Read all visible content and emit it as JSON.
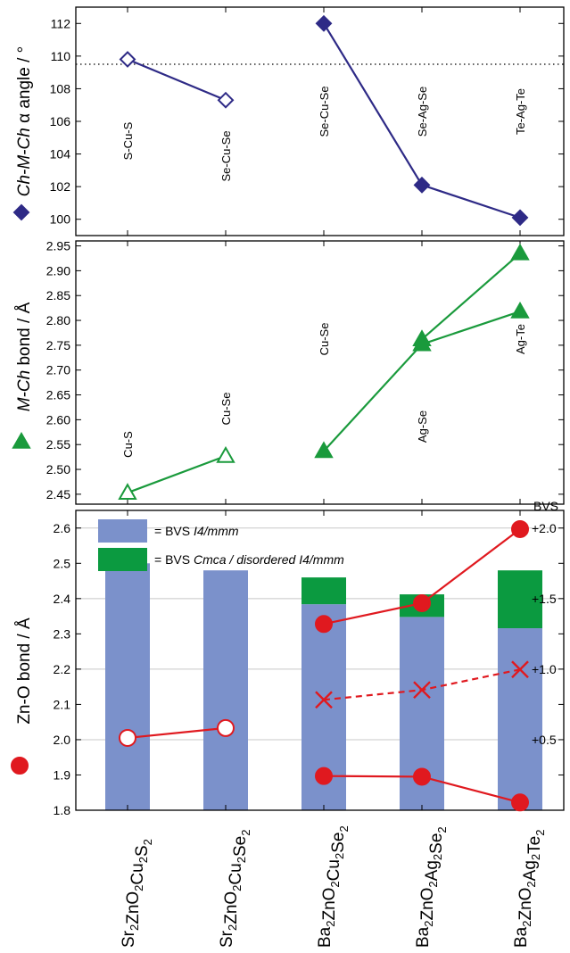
{
  "colors": {
    "purple": "#2e2a86",
    "green": "#1a9a3c",
    "red": "#e0191f",
    "bar_blue": "#7b91cb",
    "bar_green": "#0b9a40",
    "grid": "#c8c8c8"
  },
  "categories": [
    "Sr2ZnO2Cu2S2",
    "Sr2ZnO2Cu2Se2",
    "Ba2ZnO2Cu2Se2",
    "Ba2ZnO2Ag2Se2",
    "Ba2ZnO2Ag2Te2"
  ],
  "chart_data": [
    {
      "type": "line",
      "ylabel": {
        "italic1": "Ch-M-Ch",
        "greek": " α",
        "rest": " angle / °"
      },
      "ylim": [
        99,
        113
      ],
      "yticks": [
        "100",
        "102",
        "104",
        "106",
        "108",
        "110",
        "112"
      ],
      "reference_line": 109.5,
      "series": [
        {
          "x": [
            0,
            1
          ],
          "values": [
            109.8,
            107.3
          ],
          "marker": "diamond-open",
          "labels": [
            "S-Cu-S",
            "Se-Cu-Se"
          ]
        },
        {
          "x": [
            2,
            3,
            4
          ],
          "values": [
            112.0,
            102.1,
            100.1
          ],
          "marker": "diamond-filled",
          "labels": [
            "Se-Cu-Se",
            "Se-Ag-Se",
            "Te-Ag-Te"
          ]
        }
      ]
    },
    {
      "type": "line",
      "ylabel": {
        "italic1": "M-Ch",
        "rest": " bond  / Å"
      },
      "ylim": [
        2.43,
        2.96
      ],
      "yticks": [
        "2.45",
        "2.50",
        "2.55",
        "2.60",
        "2.65",
        "2.70",
        "2.75",
        "2.80",
        "2.85",
        "2.90",
        "2.95"
      ],
      "series": [
        {
          "x": [
            0,
            1
          ],
          "values": [
            2.453,
            2.527
          ],
          "marker": "triangle-open",
          "labels": [
            "Cu-S",
            "Cu-Se"
          ]
        },
        {
          "x": [
            2,
            3,
            4
          ],
          "values": [
            2.537,
            2.752,
            2.818
          ],
          "marker": "triangle-filled",
          "labels": [
            "Cu-Se",
            "Ag-Se",
            "Ag-Te"
          ]
        },
        {
          "x": [
            3,
            4
          ],
          "values": [
            2.762,
            2.935
          ],
          "marker": "triangle-filled",
          "labels": []
        }
      ]
    },
    {
      "type": "bar+line",
      "ylabel": "Zn-O bond  / Å",
      "ylim": [
        1.8,
        2.65
      ],
      "yticks": [
        "1.8",
        "1.9",
        "2.0",
        "2.1",
        "2.2",
        "2.3",
        "2.4",
        "2.5",
        "2.6"
      ],
      "legend": [
        {
          "prefix": "= BVS ",
          "italic": "I4/mmm"
        },
        {
          "prefix": "= BVS ",
          "italic": "Cmca / disordered I4/mmm"
        }
      ],
      "right_axis": {
        "label": "BVS",
        "ticks": [
          "+0.5",
          "+1.0",
          "+1.5",
          "+2.0"
        ],
        "values": [
          0.5,
          1.0,
          1.5,
          2.0
        ]
      },
      "bars_bvs_I4mmm": [
        1.75,
        1.7,
        1.46,
        1.37,
        1.29
      ],
      "bars_bvs_total": [
        1.75,
        1.7,
        1.65,
        1.53,
        1.7
      ],
      "series": [
        {
          "x": [
            0,
            1
          ],
          "values": [
            2.005,
            2.033
          ],
          "marker": "circle-open"
        },
        {
          "x": [
            2,
            3,
            4
          ],
          "values": [
            2.328,
            2.387,
            2.597
          ],
          "marker": "circle-filled"
        },
        {
          "x": [
            2,
            3,
            4
          ],
          "values": [
            1.897,
            1.895,
            1.822
          ],
          "marker": "circle-filled"
        },
        {
          "x": [
            2,
            3,
            4
          ],
          "values": [
            2.113,
            2.141,
            2.199
          ],
          "marker": "cross",
          "dashed": true
        }
      ]
    }
  ]
}
